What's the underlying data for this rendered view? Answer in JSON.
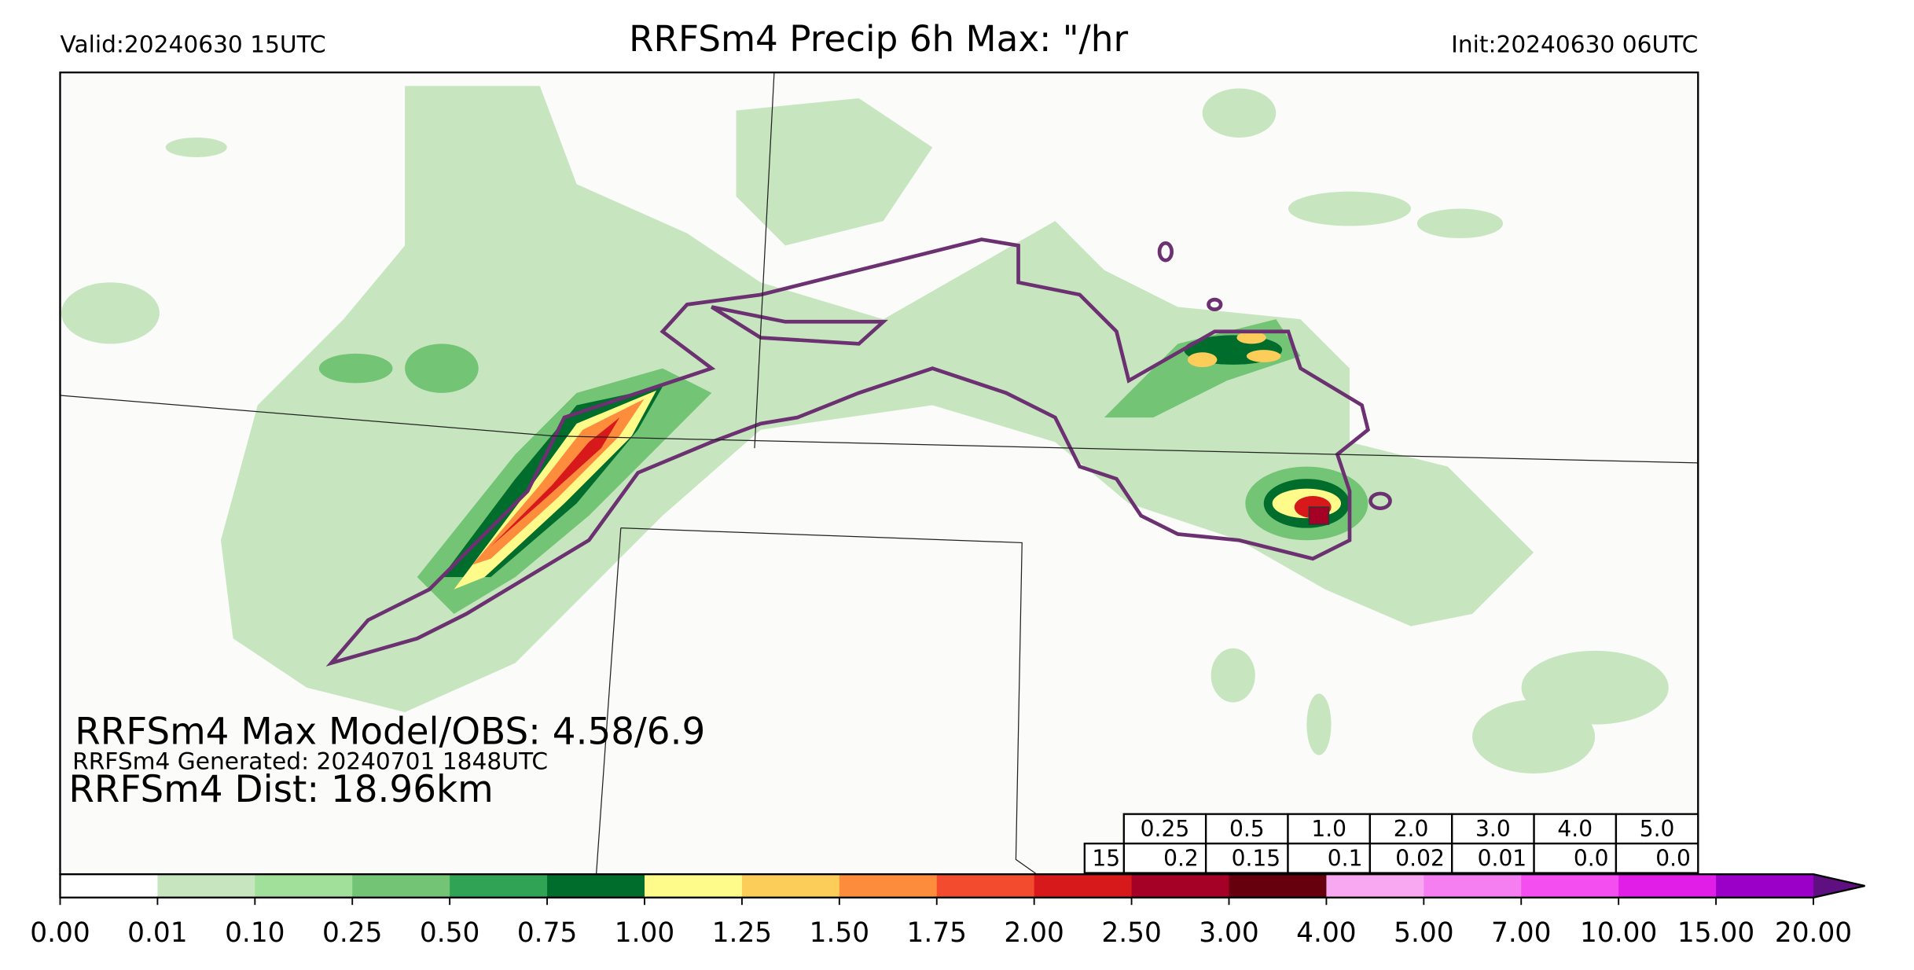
{
  "header": {
    "valid": "Valid:20240630 15UTC",
    "title": "RRFSm4 Precip 6h Max: \"/hr",
    "init": "Init:20240630 06UTC"
  },
  "annotations": {
    "max": "RRFSm4 Max Model/OBS: 4.58/6.9",
    "generated": "RRFSm4 Generated: 20240701 1848UTC",
    "dist": "RRFSm4 Dist: 18.96km"
  },
  "table": {
    "thresholds": [
      "0.25",
      "0.5",
      "1.0",
      "2.0",
      "3.0",
      "4.0",
      "5.0"
    ],
    "row_label": "15",
    "values": [
      "0.2",
      "0.15",
      "0.1",
      "0.02",
      "0.01",
      "0.0",
      "0.0"
    ]
  },
  "colorbar": {
    "ticks": [
      "0.00",
      "0.01",
      "0.10",
      "0.25",
      "0.50",
      "0.75",
      "1.00",
      "1.25",
      "1.50",
      "1.75",
      "2.00",
      "2.50",
      "3.00",
      "4.00",
      "5.00",
      "7.00",
      "10.00",
      "15.00",
      "20.00"
    ],
    "colors": [
      "#ffffff",
      "#c7e6c0",
      "#a1e09a",
      "#74c476",
      "#31a354",
      "#006d2c",
      "#fffb8a",
      "#fdcd5a",
      "#fd8d3c",
      "#f34b2e",
      "#d7191c",
      "#a50026",
      "#67000d",
      "#f7a8f0",
      "#f57ff0",
      "#f54ef0",
      "#e01ee8",
      "#9b00c9"
    ],
    "extend_color": "#5e0f80"
  }
}
